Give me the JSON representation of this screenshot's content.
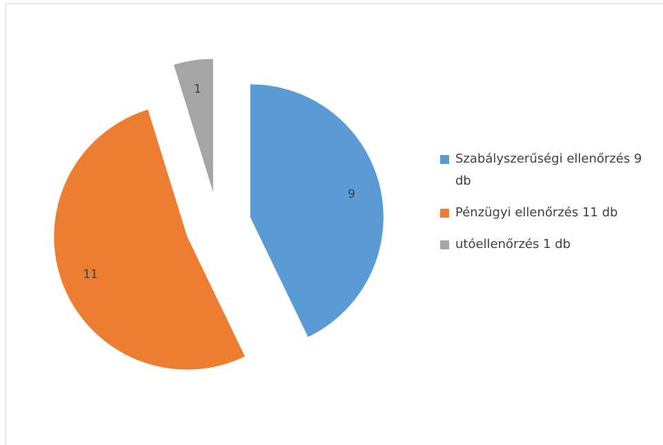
{
  "chart_data": {
    "type": "pie",
    "categories": [
      "Szabályszerűségi ellenőrzés 9 db",
      "Pénzügyi ellenőrzés 11 db",
      "utóellenőrzés 1 db"
    ],
    "values": [
      9,
      11,
      1
    ],
    "colors": [
      "#5b9bd5",
      "#ed7d31",
      "#a5a5a5"
    ],
    "exploded": true,
    "legend": "right"
  }
}
